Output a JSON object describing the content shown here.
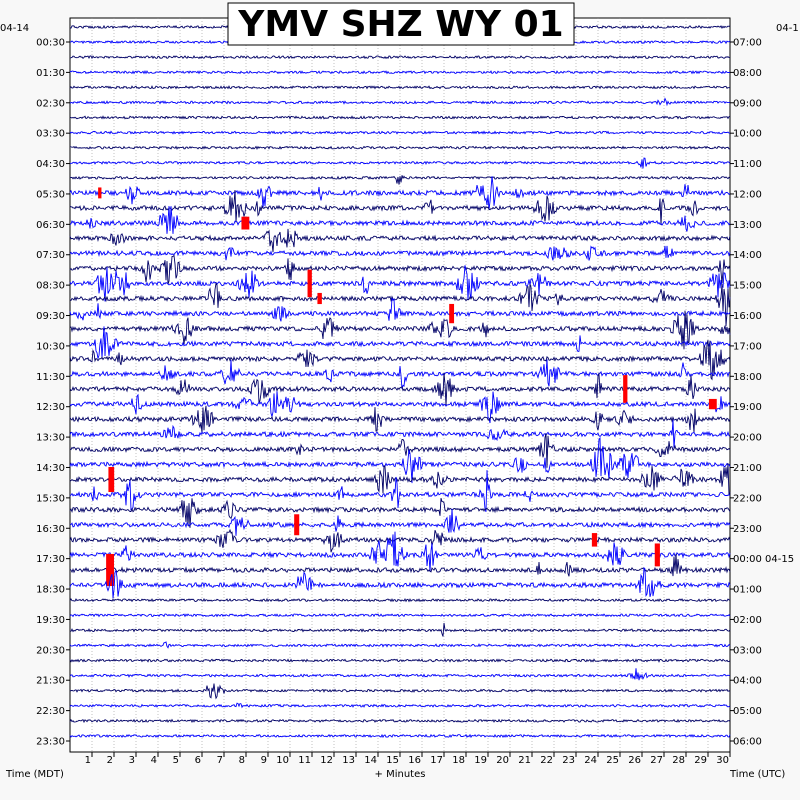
{
  "chart_data": {
    "type": "line",
    "title": "YMV SHZ WY 01",
    "xlabel": "+ Minutes",
    "ylabel_left": "Time (MDT)",
    "ylabel_right": "Time (UTC)",
    "date_left": "04-14",
    "date_right": "04-1",
    "date_right_next": "04-15",
    "x_ticks": [
      "1",
      "2",
      "3",
      "4",
      "5",
      "6",
      "7",
      "8",
      "9",
      "10",
      "11",
      "12",
      "13",
      "14",
      "15",
      "16",
      "17",
      "18",
      "19",
      "20",
      "21",
      "22",
      "23",
      "24",
      "25",
      "26",
      "27",
      "28",
      "29",
      "30"
    ],
    "xlim": [
      0,
      30
    ],
    "left_ticks": [
      "00:30",
      "01:30",
      "02:30",
      "03:30",
      "04:30",
      "05:30",
      "06:30",
      "07:30",
      "08:30",
      "09:30",
      "10:30",
      "11:30",
      "12:30",
      "13:30",
      "14:30",
      "15:30",
      "16:30",
      "17:30",
      "18:30",
      "19:30",
      "20:30",
      "21:30",
      "22:30",
      "23:30"
    ],
    "right_ticks": [
      "07:00",
      "08:00",
      "09:00",
      "10:00",
      "11:00",
      "12:00",
      "13:00",
      "14:00",
      "15:00",
      "16:00",
      "17:00",
      "18:00",
      "19:00",
      "20:00",
      "21:00",
      "22:00",
      "23:00",
      "00:00",
      "01:00",
      "02:00",
      "03:00",
      "04:00",
      "05:00",
      "06:00"
    ],
    "trace_colors": [
      "#000066",
      "#0000ff"
    ],
    "clip_color": "#ff0000",
    "grid": "dotted"
  }
}
